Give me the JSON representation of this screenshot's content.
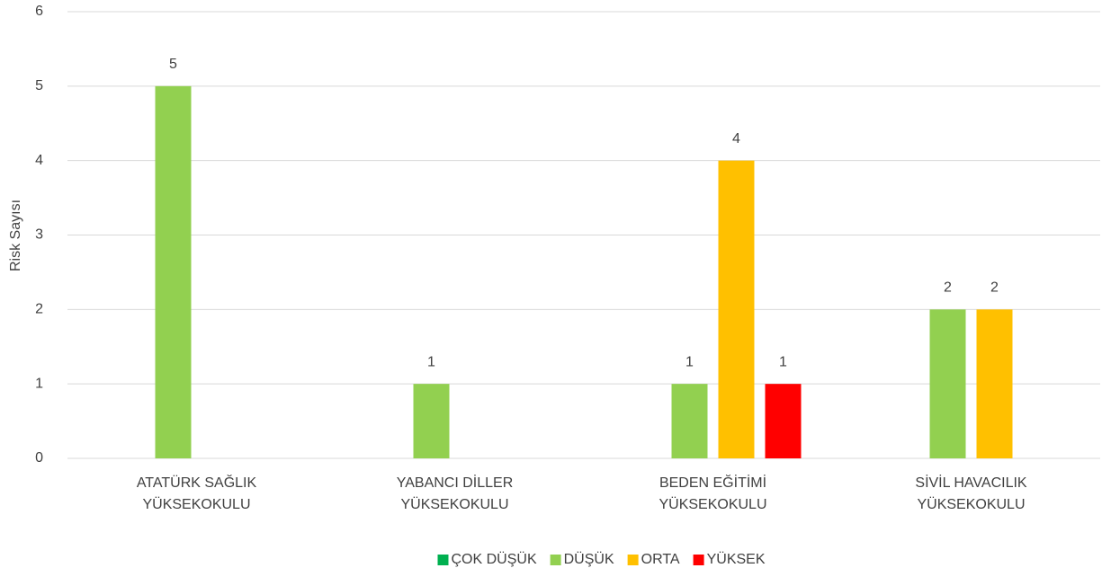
{
  "chart_data": {
    "type": "bar",
    "y_label": "Risk Sayısı",
    "categories": [
      "ATATÜRK SAĞLIK\nYÜKSEKOKULU",
      "YABANCI DİLLER\nYÜKSEKOKULU",
      "BEDEN EĞİTİMİ\nYÜKSEKOKULU",
      "SİVİL HAVACILIK\nYÜKSEKOKULU"
    ],
    "series": [
      {
        "name": "ÇOK DÜŞÜK",
        "color": "#00b050",
        "values": [
          null,
          null,
          null,
          null
        ]
      },
      {
        "name": "DÜŞÜK",
        "color": "#92d050",
        "values": [
          5,
          1,
          1,
          2
        ]
      },
      {
        "name": "ORTA",
        "color": "#ffc000",
        "values": [
          null,
          null,
          4,
          2
        ]
      },
      {
        "name": "YÜKSEK",
        "color": "#ff0000",
        "values": [
          null,
          null,
          1,
          null
        ]
      }
    ],
    "ylim": [
      0,
      6
    ],
    "yticks": [
      0,
      1,
      2,
      3,
      4,
      5,
      6
    ],
    "grid": true,
    "data_labels": true,
    "legend": "bottom"
  }
}
